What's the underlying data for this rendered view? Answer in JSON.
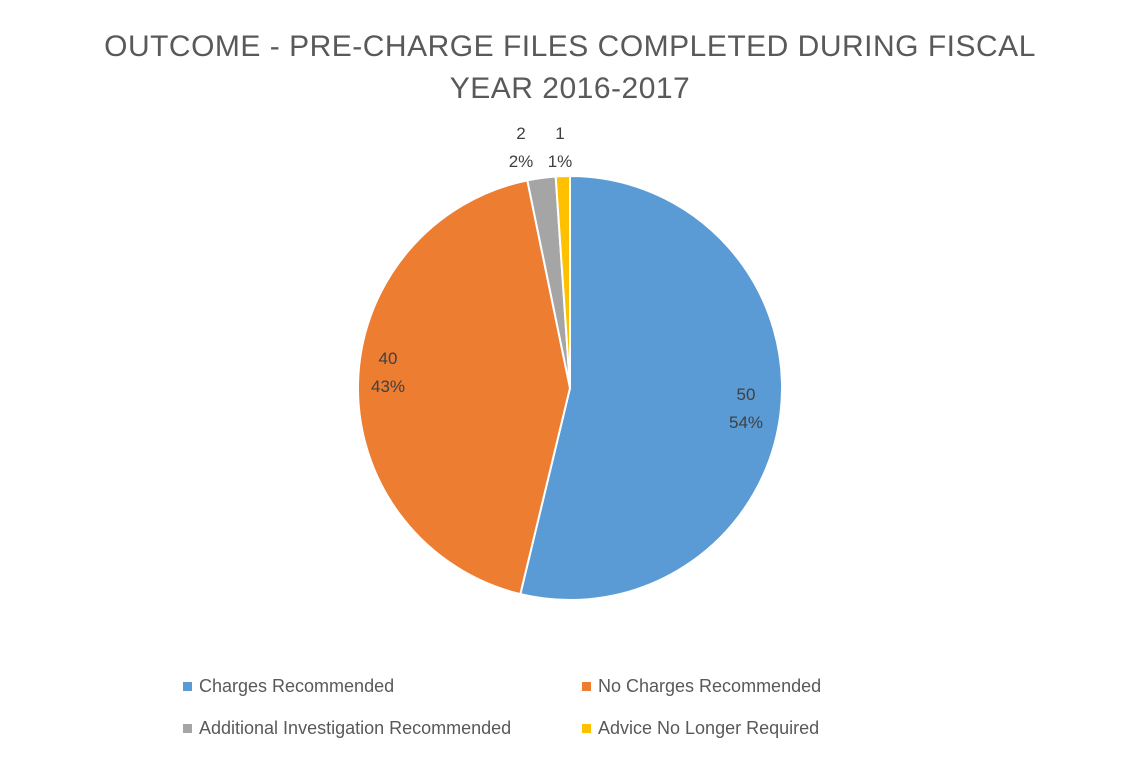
{
  "chart_data": {
    "type": "pie",
    "title": "OUTCOME - PRE-CHARGE  FILES COMPLETED DURING FISCAL YEAR 2016-2017",
    "title_lines": [
      "OUTCOME - PRE-CHARGE  FILES COMPLETED DURING FISCAL",
      "YEAR 2016-2017"
    ],
    "categories": [
      "Charges Recommended",
      "No Charges Recommended",
      "Additional Investigation Recommended",
      "Advice No Longer Required"
    ],
    "values": [
      50,
      40,
      2,
      1
    ],
    "percent_labels": [
      "54%",
      "43%",
      "2%",
      "1%"
    ],
    "colors": [
      "#5B9BD5",
      "#ED7D31",
      "#A5A5A5",
      "#FFC000"
    ],
    "legend_position": "bottom",
    "start_angle": "top, clockwise"
  }
}
